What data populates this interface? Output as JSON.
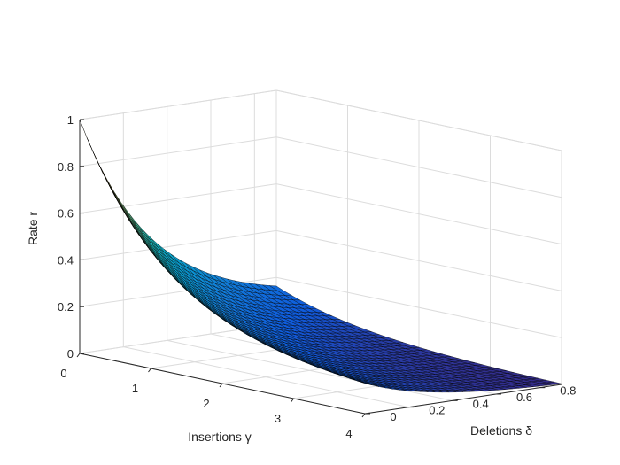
{
  "chart_data": {
    "type": "surface",
    "title": "",
    "xlabel": "Insertions γ",
    "ylabel": "Deletions δ",
    "zlabel": "Rate r",
    "xlim": [
      0,
      4
    ],
    "ylim": [
      0,
      0.9
    ],
    "zlim": [
      0,
      1
    ],
    "x_ticks": [
      "0",
      "1",
      "2",
      "3",
      "4"
    ],
    "y_ticks": [
      "0",
      "0.2",
      "0.4",
      "0.6",
      "0.8"
    ],
    "z_ticks": [
      "0",
      "0.2",
      "0.4",
      "0.6",
      "0.8",
      "1"
    ],
    "grid": true,
    "colormap": "parula",
    "edge_color": "#000000",
    "corner_values": [
      {
        "gamma": 0,
        "delta": 0,
        "rate": 1
      },
      {
        "gamma": 4,
        "delta": 0,
        "rate": 0.1
      },
      {
        "gamma": 0,
        "delta": 0.9,
        "rate": 0.1
      },
      {
        "gamma": 4,
        "delta": 0.9,
        "rate": 0
      }
    ]
  }
}
